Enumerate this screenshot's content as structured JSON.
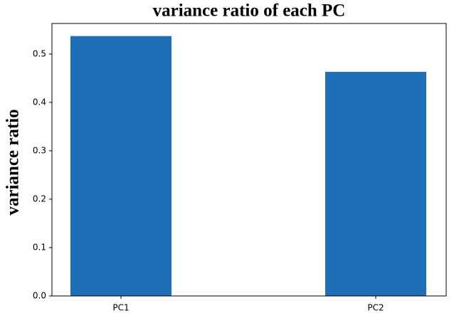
{
  "chart_data": {
    "type": "bar",
    "title": "variance ratio of each PC",
    "y_label": "variance ratio",
    "categories": [
      "PC1",
      "PC2"
    ],
    "values": [
      0.537,
      0.463
    ],
    "color": "#1f6fb8",
    "ylim": [
      0,
      0.563
    ],
    "yticks": [
      0.0,
      0.1,
      0.2,
      0.3,
      0.4,
      0.5
    ]
  }
}
